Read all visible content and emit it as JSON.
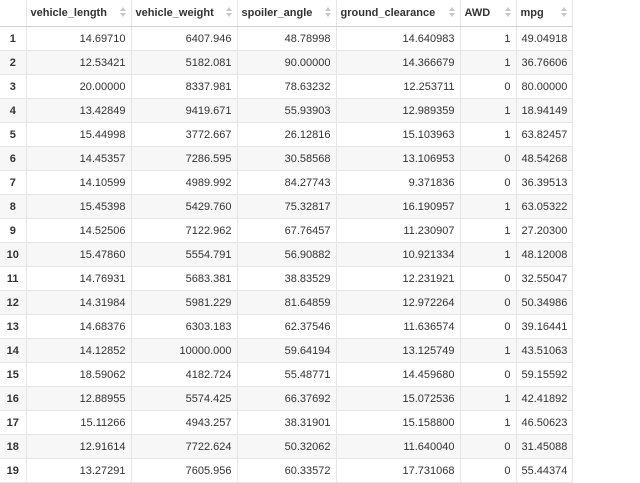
{
  "columns": [
    "vehicle_length",
    "vehicle_weight",
    "spoiler_angle",
    "ground_clearance",
    "AWD",
    "mpg"
  ],
  "rows": [
    [
      "1",
      "14.69710",
      "6407.946",
      "48.78998",
      "14.640983",
      "1",
      "49.04918"
    ],
    [
      "2",
      "12.53421",
      "5182.081",
      "90.00000",
      "14.366679",
      "1",
      "36.76606"
    ],
    [
      "3",
      "20.00000",
      "8337.981",
      "78.63232",
      "12.253711",
      "0",
      "80.00000"
    ],
    [
      "4",
      "13.42849",
      "9419.671",
      "55.93903",
      "12.989359",
      "1",
      "18.94149"
    ],
    [
      "5",
      "15.44998",
      "3772.667",
      "26.12816",
      "15.103963",
      "1",
      "63.82457"
    ],
    [
      "6",
      "14.45357",
      "7286.595",
      "30.58568",
      "13.106953",
      "0",
      "48.54268"
    ],
    [
      "7",
      "14.10599",
      "4989.992",
      "84.27743",
      "9.371836",
      "0",
      "36.39513"
    ],
    [
      "8",
      "15.45398",
      "5429.760",
      "75.32817",
      "16.190957",
      "1",
      "63.05322"
    ],
    [
      "9",
      "14.52506",
      "7122.962",
      "67.76457",
      "11.230907",
      "1",
      "27.20300"
    ],
    [
      "10",
      "15.47860",
      "5554.791",
      "56.90882",
      "10.921334",
      "1",
      "48.12008"
    ],
    [
      "11",
      "14.76931",
      "5683.381",
      "38.83529",
      "12.231921",
      "0",
      "32.55047"
    ],
    [
      "12",
      "14.31984",
      "5981.229",
      "81.64859",
      "12.972264",
      "0",
      "50.34986"
    ],
    [
      "13",
      "14.68376",
      "6303.183",
      "62.37546",
      "11.636574",
      "0",
      "39.16441"
    ],
    [
      "14",
      "14.12852",
      "10000.000",
      "59.64194",
      "13.125749",
      "1",
      "43.51063"
    ],
    [
      "15",
      "18.59062",
      "4182.724",
      "55.48771",
      "14.459680",
      "0",
      "59.15592"
    ],
    [
      "16",
      "12.88955",
      "5574.425",
      "66.37692",
      "15.072536",
      "1",
      "42.41892"
    ],
    [
      "17",
      "15.11266",
      "4943.257",
      "38.31901",
      "15.158800",
      "1",
      "46.50623"
    ],
    [
      "18",
      "12.91614",
      "7722.624",
      "50.32062",
      "11.640040",
      "0",
      "31.45088"
    ],
    [
      "19",
      "13.27291",
      "7605.956",
      "60.33572",
      "17.731068",
      "0",
      "55.44374"
    ]
  ]
}
